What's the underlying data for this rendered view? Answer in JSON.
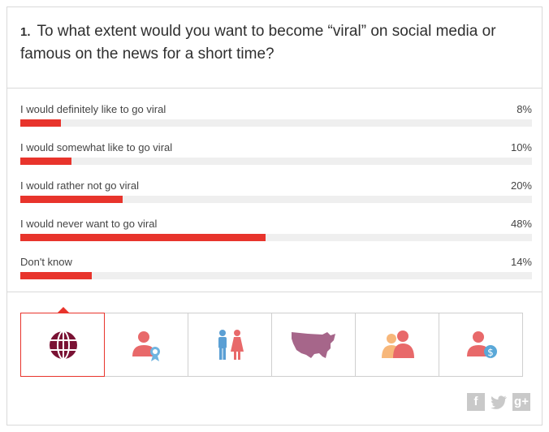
{
  "question": {
    "number": "1.",
    "text": "To what extent would you want to become “viral” on social media or famous on the news for a short time?"
  },
  "chart_data": {
    "type": "bar",
    "orientation": "horizontal",
    "categories": [
      "I would definitely like to go viral",
      "I would somewhat like to go viral",
      "I would rather not go viral",
      "I would never want to go viral",
      "Don't know"
    ],
    "values": [
      8,
      10,
      20,
      48,
      14
    ],
    "value_labels": [
      "8%",
      "10%",
      "20%",
      "48%",
      "14%"
    ],
    "xlim": [
      0,
      100
    ],
    "bar_color": "#e8342c",
    "track_color": "#efefef"
  },
  "filters": [
    {
      "icon": "globe-icon",
      "active": true
    },
    {
      "icon": "person-award-icon",
      "active": false
    },
    {
      "icon": "male-female-icon",
      "active": false
    },
    {
      "icon": "us-map-icon",
      "active": false
    },
    {
      "icon": "two-people-icon",
      "active": false
    },
    {
      "icon": "person-dollar-icon",
      "active": false
    }
  ],
  "share": {
    "facebook": "f",
    "twitter": "twitter-icon",
    "googleplus": "g+"
  }
}
